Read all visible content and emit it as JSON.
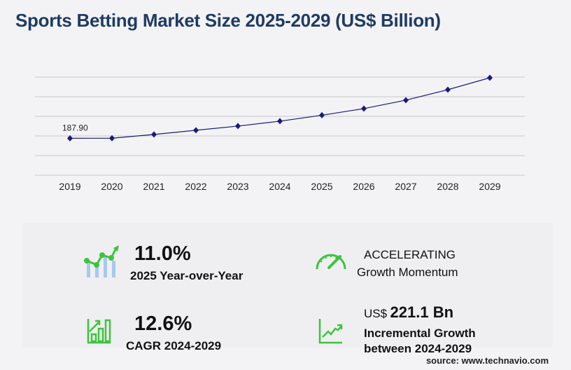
{
  "title": "Sports Betting Market Size 2025-2029 (US$ Billion)",
  "chart_data": {
    "type": "line",
    "title": "Sports Betting Market Size 2025-2029 (US$ Billion)",
    "categories": [
      "2019",
      "2020",
      "2021",
      "2022",
      "2023",
      "2024",
      "2025",
      "2026",
      "2027",
      "2028",
      "2029"
    ],
    "values": [
      187.9,
      188.5,
      207.5,
      228.9,
      250.3,
      275.3,
      305.6,
      339.5,
      382.3,
      435.7,
      496.4
    ],
    "data_labels": {
      "0": "187.90"
    },
    "ylim": [
      0,
      500
    ],
    "grid": true,
    "y_tick_labels_shown": false,
    "line_color": "#1a1a7a",
    "marker": "diamond"
  },
  "kpis": {
    "yoy": {
      "value": "11.0%",
      "label": "2025 Year-over-Year",
      "icon": "bar-line-growth-icon"
    },
    "momentum": {
      "value": "ACCELERATING",
      "label": "Growth Momentum",
      "icon": "speedometer-icon"
    },
    "cagr": {
      "value": "12.6%",
      "label": "CAGR 2024-2029",
      "icon": "bar-chart-arrow-icon"
    },
    "incremental": {
      "prefix": "US$",
      "value": "221.1 Bn",
      "label1": "Incremental Growth",
      "label2": "between 2024-2029",
      "icon": "trend-up-chart-icon"
    }
  },
  "colors": {
    "title": "#1f3b64",
    "accent_green": "#3cc43c",
    "bar_blue": "#a9c8f0",
    "line": "#1a1a7a"
  },
  "source": "source: www.technavio.com"
}
